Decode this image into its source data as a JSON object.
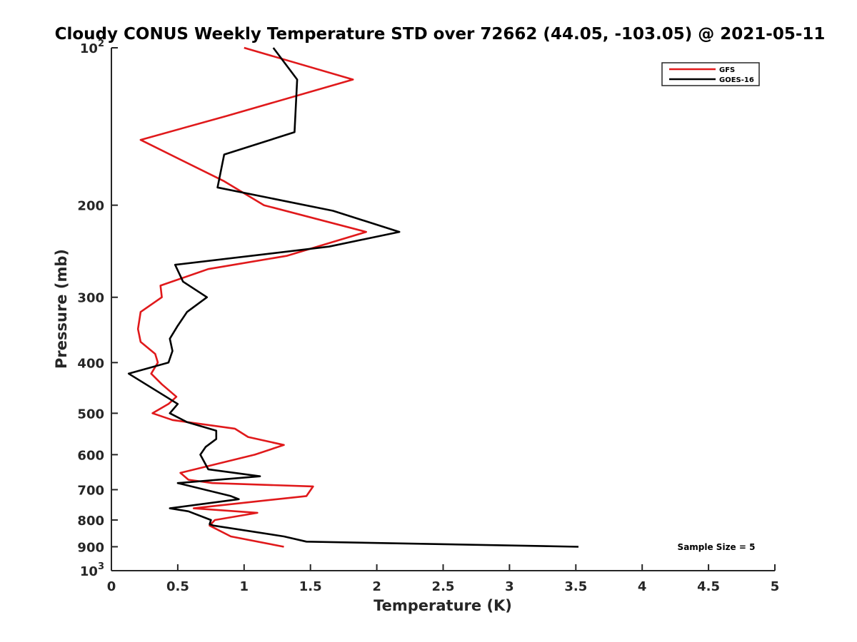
{
  "chart_data": {
    "type": "line",
    "title": "Cloudy CONUS Weekly Temperature STD over 72662 (44.05, -103.05) @ 2021-05-11",
    "xlabel": "Temperature (K)",
    "ylabel": "Pressure (mb)",
    "xlim": [
      0,
      5
    ],
    "ylim": [
      100,
      1000
    ],
    "yscale": "log",
    "y_reversed": true,
    "grid": false,
    "legend_position": "top-right",
    "x_ticks": [
      {
        "value": 0,
        "label": "0"
      },
      {
        "value": 0.5,
        "label": "0.5"
      },
      {
        "value": 1,
        "label": "1"
      },
      {
        "value": 1.5,
        "label": "1.5"
      },
      {
        "value": 2,
        "label": "2"
      },
      {
        "value": 2.5,
        "label": "2.5"
      },
      {
        "value": 3,
        "label": "3"
      },
      {
        "value": 3.5,
        "label": "3.5"
      },
      {
        "value": 4,
        "label": "4"
      },
      {
        "value": 4.5,
        "label": "4.5"
      },
      {
        "value": 5,
        "label": "5"
      }
    ],
    "y_ticks": [
      {
        "value": 100,
        "label": "10",
        "exp": "2"
      },
      {
        "value": 200,
        "label": "200"
      },
      {
        "value": 300,
        "label": "300"
      },
      {
        "value": 400,
        "label": "400"
      },
      {
        "value": 500,
        "label": "500"
      },
      {
        "value": 600,
        "label": "600"
      },
      {
        "value": 700,
        "label": "700"
      },
      {
        "value": 800,
        "label": "800"
      },
      {
        "value": 900,
        "label": "900"
      },
      {
        "value": 1000,
        "label": "10",
        "exp": "3"
      }
    ],
    "series": [
      {
        "name": "GFS",
        "color": "#e0191b",
        "points": [
          [
            1.0,
            100
          ],
          [
            1.82,
            115
          ],
          [
            0.87,
            135
          ],
          [
            0.22,
            150
          ],
          [
            0.85,
            180
          ],
          [
            1.15,
            200
          ],
          [
            1.92,
            225
          ],
          [
            1.32,
            250
          ],
          [
            0.73,
            265
          ],
          [
            0.37,
            285
          ],
          [
            0.38,
            300
          ],
          [
            0.22,
            320
          ],
          [
            0.2,
            345
          ],
          [
            0.22,
            365
          ],
          [
            0.33,
            385
          ],
          [
            0.35,
            400
          ],
          [
            0.3,
            420
          ],
          [
            0.38,
            440
          ],
          [
            0.49,
            465
          ],
          [
            0.43,
            480
          ],
          [
            0.31,
            500
          ],
          [
            0.46,
            515
          ],
          [
            0.93,
            535
          ],
          [
            1.03,
            555
          ],
          [
            1.3,
            575
          ],
          [
            1.08,
            600
          ],
          [
            0.52,
            650
          ],
          [
            0.58,
            670
          ],
          [
            0.76,
            680
          ],
          [
            1.52,
            690
          ],
          [
            1.47,
            720
          ],
          [
            0.82,
            750
          ],
          [
            0.62,
            760
          ],
          [
            1.1,
            775
          ],
          [
            0.78,
            800
          ],
          [
            0.74,
            820
          ],
          [
            0.9,
            860
          ],
          [
            1.3,
            900
          ]
        ]
      },
      {
        "name": "GOES-16",
        "color": "#000000",
        "points": [
          [
            1.22,
            100
          ],
          [
            1.4,
            115
          ],
          [
            1.38,
            145
          ],
          [
            0.85,
            160
          ],
          [
            0.8,
            185
          ],
          [
            1.67,
            205
          ],
          [
            2.17,
            225
          ],
          [
            1.64,
            240
          ],
          [
            0.48,
            260
          ],
          [
            0.54,
            280
          ],
          [
            0.72,
            300
          ],
          [
            0.57,
            320
          ],
          [
            0.5,
            340
          ],
          [
            0.44,
            360
          ],
          [
            0.46,
            380
          ],
          [
            0.43,
            400
          ],
          [
            0.13,
            420
          ],
          [
            0.29,
            445
          ],
          [
            0.5,
            480
          ],
          [
            0.44,
            500
          ],
          [
            0.57,
            520
          ],
          [
            0.79,
            540
          ],
          [
            0.79,
            560
          ],
          [
            0.71,
            580
          ],
          [
            0.67,
            600
          ],
          [
            0.73,
            640
          ],
          [
            1.12,
            660
          ],
          [
            0.5,
            680
          ],
          [
            0.9,
            720
          ],
          [
            0.96,
            730
          ],
          [
            0.44,
            760
          ],
          [
            0.58,
            770
          ],
          [
            0.75,
            800
          ],
          [
            0.74,
            815
          ],
          [
            0.77,
            820
          ],
          [
            1.3,
            860
          ],
          [
            1.47,
            880
          ],
          [
            3.52,
            900
          ]
        ]
      }
    ],
    "annotations": [
      {
        "text": "Sample Size = 5",
        "position": "bottom-right"
      }
    ]
  }
}
